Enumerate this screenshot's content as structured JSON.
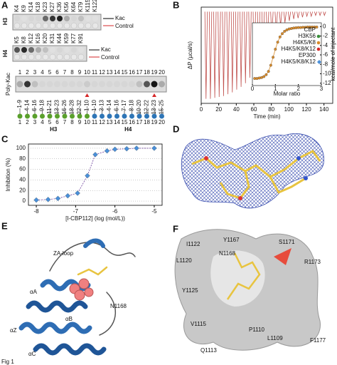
{
  "panels": {
    "A": {
      "label": "A",
      "h3": "H3",
      "h4": "H4",
      "kac_h3": "Kac",
      "control_h3": "Control",
      "kac_h4": "Kac",
      "control_h4": "Control",
      "poly": "Poly-Kac",
      "h3_lanes": [
        "K4",
        "K9",
        "K14",
        "K18",
        "K23",
        "K27",
        "K36",
        "K56",
        "K64",
        "K79",
        "K115",
        "K122"
      ],
      "h3_signal": [
        0.1,
        0.05,
        0.1,
        0.1,
        0.6,
        0.85,
        0.95,
        0.3,
        0.1,
        0.2,
        0.05,
        0.05
      ],
      "h4_lanes": [
        "K5",
        "K8",
        "K12",
        "K16",
        "K20",
        "K31",
        "K44",
        "K59",
        "K77",
        "K91"
      ],
      "h4_signal": [
        0.7,
        0.9,
        0.6,
        0.3,
        0.2,
        0.05,
        0.1,
        0.05,
        0.1,
        0.05
      ],
      "poly_lanes": [
        "1",
        "2",
        "3",
        "4",
        "5",
        "6",
        "7",
        "8",
        "9",
        "10",
        "11",
        "12",
        "13",
        "14",
        "15",
        "16",
        "17",
        "18",
        "19",
        "20"
      ],
      "poly_signal": [
        0.3,
        0.85,
        0.2,
        0.1,
        0.1,
        0.1,
        0.1,
        0.1,
        0.1,
        0.15,
        0.1,
        0.1,
        0.1,
        0.1,
        0.1,
        0.1,
        0.2,
        0.7,
        1.0,
        0.3
      ],
      "highlight": [
        "10",
        "19"
      ],
      "highlight_color": "#d62728",
      "peptides_h3": [
        "1-9",
        "4-14",
        "6-16",
        "9-18",
        "11-21",
        "13-23",
        "16-26",
        "18-28",
        "22-32",
        "1-10"
      ],
      "peptides_h4": [
        "1-10",
        "3-13",
        "4-14",
        "6-16",
        "7-17",
        "8-18",
        "10-20",
        "12-22",
        "13-23",
        "15-25"
      ],
      "peptide_numbers": [
        "1",
        "2",
        "3",
        "4",
        "5",
        "6",
        "7",
        "8",
        "9",
        "10",
        "11",
        "12",
        "13",
        "14",
        "15",
        "16",
        "17",
        "18",
        "19",
        "20"
      ],
      "h3_color": "#5aa02c",
      "h4_color": "#2e75b6",
      "group_h3": "H3",
      "group_h4": "H4"
    },
    "B": {
      "label": "B"
    },
    "C": {
      "label": "C"
    },
    "D": {
      "label": "D"
    },
    "E": {
      "label": "E",
      "za_loop": "ZA-loop",
      "aA": "αA",
      "aB": "αB",
      "aZ": "αZ",
      "aC": "αC",
      "n1168": "N1168"
    },
    "F": {
      "label": "F",
      "residues": [
        "I1122",
        "Y1167",
        "S1171",
        "L1120",
        "N1168",
        "R1173",
        "Y1125",
        "V1115",
        "P1110",
        "L1109",
        "F1177",
        "Q1113"
      ]
    }
  },
  "chart_data": [
    {
      "type": "spike",
      "xlabel": "Time (min)",
      "ylabel": "ΔP (µcal/s)",
      "color": "#c0504d",
      "x": [
        5,
        10,
        15,
        20,
        25,
        30,
        35,
        40,
        45,
        50,
        55,
        60,
        65,
        70,
        75,
        80,
        85,
        90,
        95,
        100,
        105,
        110,
        115,
        120,
        125,
        130,
        135,
        140
      ],
      "values": [
        -0.95,
        -0.95,
        -0.94,
        -0.93,
        -0.92,
        -0.9,
        -0.88,
        -0.85,
        -0.82,
        -0.78,
        -0.72,
        -0.65,
        -0.55,
        -0.45,
        -0.35,
        -0.27,
        -0.2,
        -0.15,
        -0.12,
        -0.1,
        -0.08,
        -0.07,
        -0.06,
        -0.05,
        -0.05,
        -0.04,
        -0.04,
        -0.04
      ],
      "xlim": [
        0,
        150
      ],
      "xticks": [
        0,
        20,
        40,
        60,
        80,
        100,
        120,
        140
      ],
      "ylim": [
        -1,
        0.05
      ]
    },
    {
      "type": "scatter",
      "xlabel": "Molar ratio",
      "ylabel": "kcal/mole of injectant",
      "legend_headers": [
        "CBP",
        "EP300"
      ],
      "xlim": [
        0,
        3
      ],
      "xticks": [
        0,
        1,
        2,
        3
      ],
      "ylim": [
        -12.5,
        0.8
      ],
      "yticks": [
        0,
        -2,
        -4,
        -6,
        -8,
        -10,
        -12
      ],
      "series": [
        {
          "name": "H3K56",
          "color": "#3a8f3a",
          "x": [],
          "values": []
        },
        {
          "name": "H4K5/K8",
          "color": "#d98c2b",
          "x": [
            0.1,
            0.2,
            0.3,
            0.4,
            0.5,
            0.6,
            0.7,
            0.8,
            0.9,
            1.0,
            1.1,
            1.2,
            1.3,
            1.4,
            1.5,
            1.6,
            1.7,
            1.8,
            1.9,
            2.0,
            2.1,
            2.2,
            2.3,
            2.4,
            2.5,
            2.6,
            2.7,
            2.8
          ],
          "values": [
            -11,
            -11,
            -10.9,
            -10.8,
            -10.6,
            -10.2,
            -9.5,
            -8.2,
            -6.5,
            -4.8,
            -3.3,
            -2.2,
            -1.5,
            -1.0,
            -0.7,
            -0.5,
            -0.4,
            -0.3,
            -0.25,
            -0.2,
            -0.2,
            -0.15,
            -0.15,
            -0.1,
            -0.1,
            -0.1,
            -0.1,
            -0.1
          ]
        },
        {
          "name": "H4K5/K8/K12",
          "color": "#d62728",
          "x": [],
          "values": []
        },
        {
          "name": "H4K5/K8/K12",
          "color": "#4a90d9",
          "marker": "diamond",
          "x": [],
          "values": []
        }
      ]
    },
    {
      "type": "scatter",
      "xlabel": "[I-CBP112] (log (mol/L))",
      "ylabel": "Inhibition (%)",
      "color": "#4a90d9",
      "fit_color": "#6a3d9a",
      "x": [
        -8,
        -7.7,
        -7.45,
        -7.2,
        -6.95,
        -6.7,
        -6.5,
        -6.2,
        -6,
        -5.7,
        -5.45,
        -5
      ],
      "values": [
        2,
        3,
        5,
        10,
        15,
        48,
        88,
        95,
        98,
        99,
        100,
        100
      ],
      "xlim": [
        -8.2,
        -4.8
      ],
      "xticks": [
        -8,
        -7,
        -6,
        -5
      ],
      "ylim": [
        -8,
        108
      ],
      "yticks": [
        0,
        20,
        40,
        60,
        80,
        100
      ],
      "grid": true
    }
  ],
  "footer": "Fig 1"
}
